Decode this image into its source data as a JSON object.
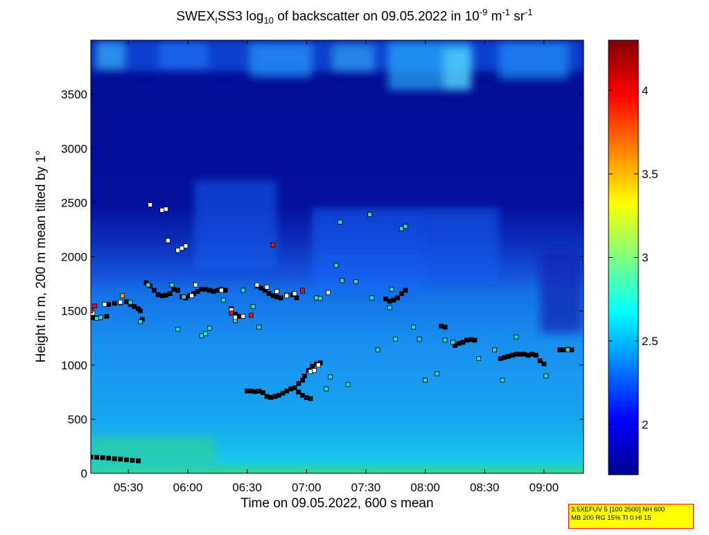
{
  "title": {
    "main": "SWEX",
    "sub1": "I",
    "mid": "SS3 log",
    "sub2": "10",
    "rest": " of backscatter on 09.05.2022 in 10",
    "sup1": "-9",
    "unit1": " m",
    "sup2": "-1",
    "unit2": " sr",
    "sup3": "-1"
  },
  "xlabel": "Time on 09.05.2022, 600 s mean",
  "ylabel": "Height in m, 200 m mean tilted by 1°",
  "info_box": {
    "line1": "3.5XEFUV 5 [100 2500] NH 600",
    "line2": "MB 200 RG 15% TI 0 HI 15"
  },
  "colors": {
    "low": "#00008f",
    "cyan": "#00ffff",
    "mid_blue": "#1a6cff",
    "high": "#800000"
  },
  "chart_data": {
    "type": "heatmap",
    "x_axis": {
      "ticks": [
        "05:30",
        "06:00",
        "06:30",
        "07:00",
        "07:30",
        "08:00",
        "08:30",
        "09:00"
      ],
      "tick_minutes": [
        330,
        360,
        390,
        420,
        450,
        480,
        510,
        540
      ],
      "range_minutes": [
        311,
        560
      ]
    },
    "y_axis": {
      "ticks": [
        "0",
        "500",
        "1000",
        "1500",
        "2000",
        "2500",
        "3000",
        "3500"
      ],
      "tick_values": [
        0,
        500,
        1000,
        1500,
        2000,
        2500,
        3000,
        3500
      ],
      "range": [
        0,
        4000
      ]
    },
    "colorbar": {
      "range": [
        1.7,
        4.3
      ],
      "ticks": [
        "2",
        "2.5",
        "3",
        "3.5",
        "4"
      ],
      "tick_values": [
        2,
        2.5,
        3,
        3.5,
        4
      ],
      "colormap": "jet"
    },
    "series": [
      {
        "marker": "black-square",
        "points": [
          [
            311,
            150
          ],
          [
            314,
            148
          ],
          [
            317,
            145
          ],
          [
            320,
            140
          ],
          [
            323,
            135
          ],
          [
            326,
            130
          ],
          [
            329,
            125
          ],
          [
            332,
            120
          ],
          [
            335,
            115
          ],
          [
            311,
            1440
          ],
          [
            313,
            1435
          ],
          [
            316,
            1440
          ],
          [
            319,
            1450
          ],
          [
            320,
            1560
          ],
          [
            323,
            1570
          ],
          [
            326,
            1575
          ],
          [
            329,
            1585
          ],
          [
            331,
            1560
          ],
          [
            333,
            1540
          ],
          [
            335,
            1520
          ],
          [
            336,
            1500
          ],
          [
            337,
            1420
          ],
          [
            339,
            1760
          ],
          [
            341,
            1730
          ],
          [
            343,
            1690
          ],
          [
            345,
            1650
          ],
          [
            347,
            1640
          ],
          [
            349,
            1645
          ],
          [
            351,
            1660
          ],
          [
            353,
            1700
          ],
          [
            355,
            1690
          ],
          [
            357,
            1630
          ],
          [
            359,
            1620
          ],
          [
            361,
            1640
          ],
          [
            363,
            1660
          ],
          [
            365,
            1680
          ],
          [
            367,
            1700
          ],
          [
            369,
            1700
          ],
          [
            371,
            1690
          ],
          [
            373,
            1680
          ],
          [
            375,
            1690
          ],
          [
            377,
            1700
          ],
          [
            379,
            1690
          ],
          [
            382,
            1520
          ],
          [
            384,
            1470
          ],
          [
            386,
            1450
          ],
          [
            388,
            1450
          ],
          [
            390,
            760
          ],
          [
            392,
            760
          ],
          [
            394,
            755
          ],
          [
            396,
            760
          ],
          [
            398,
            745
          ],
          [
            400,
            710
          ],
          [
            402,
            700
          ],
          [
            404,
            710
          ],
          [
            406,
            720
          ],
          [
            408,
            740
          ],
          [
            410,
            760
          ],
          [
            412,
            780
          ],
          [
            414,
            790
          ],
          [
            416,
            830
          ],
          [
            418,
            860
          ],
          [
            419,
            900
          ],
          [
            421,
            950
          ],
          [
            423,
            990
          ],
          [
            425,
            1010
          ],
          [
            427,
            1020
          ],
          [
            416,
            750
          ],
          [
            418,
            720
          ],
          [
            420,
            700
          ],
          [
            422,
            690
          ],
          [
            395,
            1730
          ],
          [
            397,
            1710
          ],
          [
            399,
            1690
          ],
          [
            401,
            1660
          ],
          [
            403,
            1640
          ],
          [
            405,
            1630
          ],
          [
            407,
            1620
          ],
          [
            413,
            1650
          ],
          [
            415,
            1620
          ],
          [
            460,
            1610
          ],
          [
            462,
            1590
          ],
          [
            464,
            1600
          ],
          [
            466,
            1620
          ],
          [
            468,
            1660
          ],
          [
            470,
            1690
          ],
          [
            488,
            1360
          ],
          [
            490,
            1350
          ],
          [
            495,
            1180
          ],
          [
            497,
            1200
          ],
          [
            499,
            1210
          ],
          [
            501,
            1230
          ],
          [
            503,
            1235
          ],
          [
            505,
            1230
          ],
          [
            518,
            1060
          ],
          [
            520,
            1070
          ],
          [
            522,
            1080
          ],
          [
            524,
            1090
          ],
          [
            526,
            1100
          ],
          [
            528,
            1100
          ],
          [
            530,
            1100
          ],
          [
            532,
            1090
          ],
          [
            534,
            1100
          ],
          [
            536,
            1090
          ],
          [
            538,
            1040
          ],
          [
            540,
            1010
          ],
          [
            548,
            1140
          ],
          [
            550,
            1140
          ],
          [
            552,
            1145
          ],
          [
            554,
            1140
          ]
        ]
      },
      {
        "marker": "cyan-square",
        "points": [
          [
            314,
            1430
          ],
          [
            316,
            1440
          ],
          [
            331,
            1580
          ],
          [
            336,
            1400
          ],
          [
            340,
            1740
          ],
          [
            352,
            1740
          ],
          [
            355,
            1330
          ],
          [
            358,
            1630
          ],
          [
            367,
            1270
          ],
          [
            369,
            1290
          ],
          [
            371,
            1340
          ],
          [
            378,
            1600
          ],
          [
            384,
            1410
          ],
          [
            388,
            1690
          ],
          [
            393,
            1540
          ],
          [
            396,
            1350
          ],
          [
            410,
            1650
          ],
          [
            418,
            1680
          ],
          [
            425,
            1620
          ],
          [
            427,
            1615
          ],
          [
            430,
            780
          ],
          [
            432,
            890
          ],
          [
            435,
            1920
          ],
          [
            437,
            2320
          ],
          [
            438,
            1780
          ],
          [
            441,
            820
          ],
          [
            445,
            1770
          ],
          [
            452,
            2390
          ],
          [
            453,
            1620
          ],
          [
            456,
            1140
          ],
          [
            462,
            1530
          ],
          [
            463,
            1700
          ],
          [
            465,
            1240
          ],
          [
            468,
            2260
          ],
          [
            470,
            2280
          ],
          [
            474,
            1350
          ],
          [
            477,
            1240
          ],
          [
            480,
            860
          ],
          [
            486,
            920
          ],
          [
            490,
            1230
          ],
          [
            494,
            1210
          ],
          [
            507,
            1060
          ],
          [
            515,
            1140
          ],
          [
            519,
            860
          ],
          [
            526,
            1260
          ],
          [
            541,
            900
          ],
          [
            552,
            1140
          ]
        ]
      },
      {
        "marker": "white-square",
        "points": [
          [
            312,
            1480
          ],
          [
            318,
            1560
          ],
          [
            326,
            1580
          ],
          [
            341,
            2480
          ],
          [
            347,
            2430
          ],
          [
            349,
            2440
          ],
          [
            350,
            2150
          ],
          [
            355,
            2060
          ],
          [
            357,
            2080
          ],
          [
            359,
            2100
          ],
          [
            362,
            1640
          ],
          [
            364,
            1740
          ],
          [
            377,
            1690
          ],
          [
            382,
            1510
          ],
          [
            384,
            1440
          ],
          [
            388,
            1450
          ],
          [
            395,
            1740
          ],
          [
            400,
            1720
          ],
          [
            405,
            1680
          ],
          [
            410,
            1640
          ],
          [
            414,
            1660
          ],
          [
            422,
            940
          ],
          [
            424,
            950
          ],
          [
            426,
            1000
          ],
          [
            431,
            1670
          ]
        ]
      },
      {
        "marker": "red-square",
        "points": [
          [
            311,
            1500
          ],
          [
            313,
            1545
          ],
          [
            382,
            1480
          ],
          [
            392,
            1460
          ],
          [
            403,
            2110
          ],
          [
            418,
            1690
          ]
        ]
      },
      {
        "marker": "orange-square",
        "points": [
          [
            327,
            1640
          ]
        ]
      }
    ]
  }
}
